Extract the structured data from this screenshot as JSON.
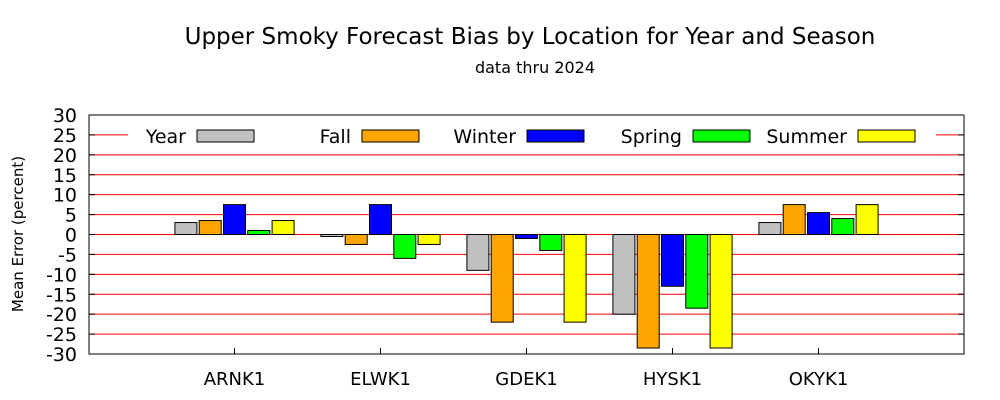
{
  "chart_data": {
    "type": "bar",
    "title": "Upper Smoky Forecast Bias by Location for Year and Season",
    "subtitle": "data thru 2024",
    "xlabel": "",
    "ylabel": "Mean Error (percent)",
    "ylim": [
      -30,
      30
    ],
    "yticks": [
      30,
      25,
      20,
      15,
      10,
      5,
      0,
      -5,
      -10,
      -15,
      -20,
      -25,
      -30
    ],
    "categories": [
      "ARNK1",
      "ELWK1",
      "GDEK1",
      "HYSK1",
      "OKYK1"
    ],
    "grid": true,
    "legend_position": "top",
    "series": [
      {
        "name": "Year",
        "color": "#c0c0c0",
        "values": [
          3,
          -0.5,
          -9,
          -20,
          3
        ]
      },
      {
        "name": "Fall",
        "color": "#ffa500",
        "values": [
          3.5,
          -2.5,
          -22,
          -28.5,
          7.5
        ]
      },
      {
        "name": "Winter",
        "color": "#0000ff",
        "values": [
          7.5,
          7.5,
          -1,
          -13,
          5.5
        ]
      },
      {
        "name": "Spring",
        "color": "#00ff00",
        "values": [
          1,
          -6,
          -4,
          -18.5,
          4
        ]
      },
      {
        "name": "Summer",
        "color": "#ffff00",
        "values": [
          3.5,
          -2.5,
          -22,
          -28.5,
          7.5
        ]
      }
    ]
  }
}
